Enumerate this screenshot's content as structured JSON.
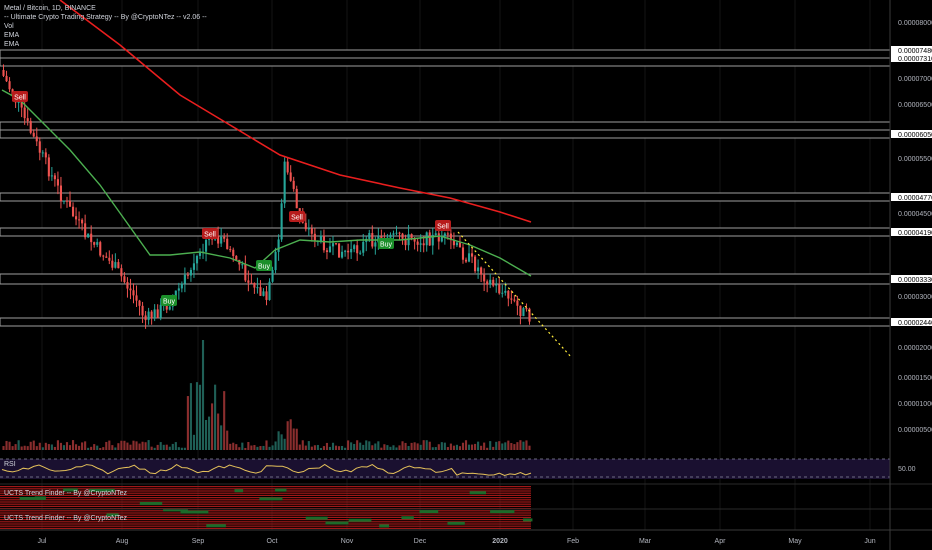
{
  "legend": {
    "symbol": "Metal / Bitcoin, 1D, BINANCE",
    "strategy": "-- Ultimate Crypto Trading Strategy -- By @CryptoNTez -- v2.06 --",
    "vol": "Vol",
    "ema1": "EMA",
    "ema2": "EMA"
  },
  "rsi_label": "RSI",
  "rsi_level": "50.00",
  "trend_finder_1": "UCTS Trend Finder -- By @CryptoNTez",
  "trend_finder_2": "UCTS Trend Finder -- By @CryptoNTez",
  "x_axis": [
    "Jul",
    "Aug",
    "Sep",
    "Oct",
    "Nov",
    "Dec",
    "2020",
    "Feb",
    "Mar",
    "Apr",
    "May",
    "Jun"
  ],
  "price_ticks": [
    "0.00008000",
    "0.00007000",
    "0.00006500",
    "0.00005500",
    "0.00004500",
    "0.00003000",
    "0.00002000",
    "0.00001500",
    "0.00001000",
    "0.00000500"
  ],
  "level_labels": [
    "0.00007480",
    "0.00007310",
    "0.00006050",
    "0.00004770",
    "0.00004190",
    "0.00003330",
    "0.00002440"
  ],
  "signals": [
    {
      "label": "Sell",
      "type": "sell"
    },
    {
      "label": "Sell",
      "type": "sell"
    },
    {
      "label": "Sell",
      "type": "sell"
    },
    {
      "label": "Sell",
      "type": "sell"
    },
    {
      "label": "Buy",
      "type": "buy"
    },
    {
      "label": "Buy",
      "type": "buy"
    },
    {
      "label": "Buy",
      "type": "buy"
    }
  ],
  "colors": {
    "background": "#000000",
    "up": "#26a69a",
    "down": "#ef5350",
    "ema_fast": "#4caf50",
    "ema_slow": "#e91e1e",
    "level_band": "#9e9e9e",
    "trendline": "#ffeb3b",
    "rsi_line": "#e6c25a",
    "rsi_bg": "#1a1030"
  }
}
